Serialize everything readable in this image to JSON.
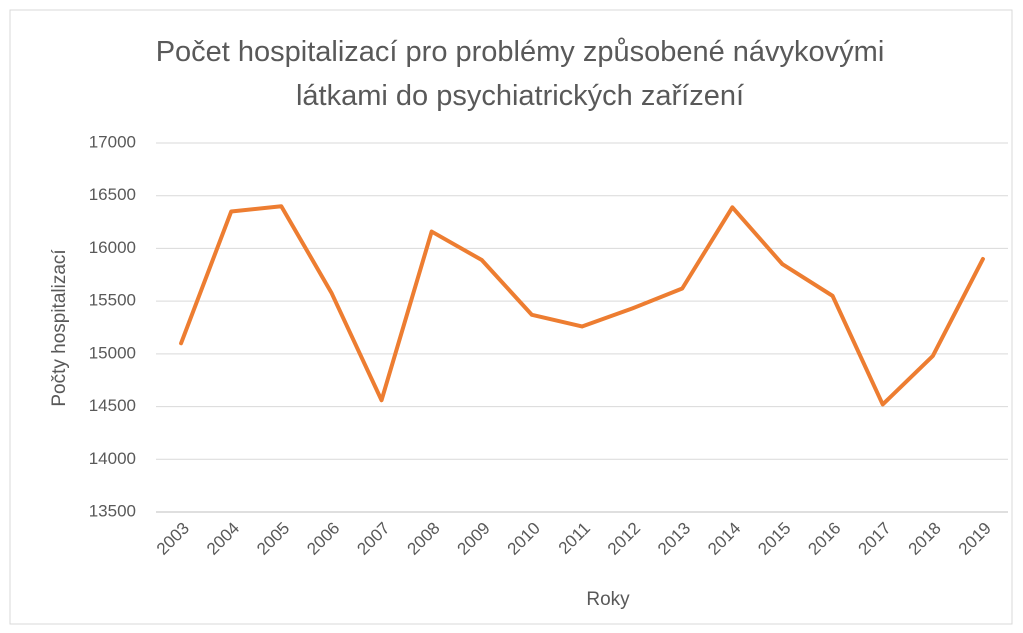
{
  "chart_data": {
    "type": "line",
    "title": "Počet hospitalizací pro problémy způsobené návykovými látkami do psychiatrických zařízení",
    "xlabel": "Roky",
    "ylabel": "Počty hospitalizací",
    "categories": [
      "2003",
      "2004",
      "2005",
      "2006",
      "2007",
      "2008",
      "2009",
      "2010",
      "2011",
      "2012",
      "2013",
      "2014",
      "2015",
      "2016",
      "2017",
      "2018",
      "2019"
    ],
    "series": [
      {
        "name": "Počty hospitalizací",
        "color": "#ed7d31",
        "values": [
          15100,
          16350,
          16400,
          15580,
          14560,
          16160,
          15890,
          15370,
          15260,
          15430,
          15620,
          16390,
          15850,
          15550,
          14520,
          14980,
          15900
        ]
      }
    ],
    "ylim": [
      13500,
      17000
    ],
    "yticks": [
      13500,
      14000,
      14500,
      15000,
      15500,
      16000,
      16500,
      17000
    ],
    "grid": true
  }
}
